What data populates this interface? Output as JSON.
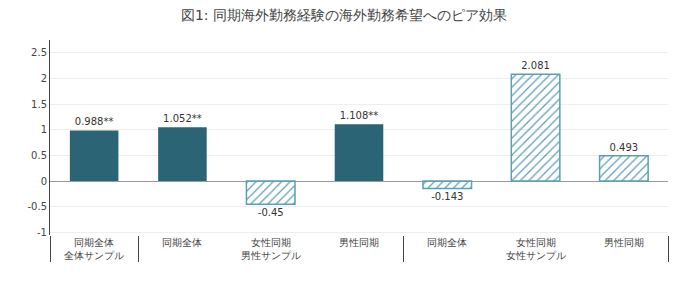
{
  "chart_data": {
    "type": "bar",
    "title": "図1: 同期海外勤務経験の海外勤務希望へのピア効果",
    "groups": [
      {
        "name": "全体サンプル",
        "categories": [
          "同期全体"
        ]
      },
      {
        "name": "男性サンプル",
        "categories": [
          "同期全体",
          "女性同期",
          "男性同期"
        ]
      },
      {
        "name": "女性サンプル",
        "categories": [
          "同期全体",
          "女性同期",
          "男性同期"
        ]
      }
    ],
    "series": [
      {
        "line_style": "solid",
        "color": "#2a6475",
        "values": [
          0.988,
          1.052,
          null,
          1.108,
          null,
          null,
          null
        ],
        "value_labels": [
          "0.988**",
          "1.052**",
          null,
          "1.108**",
          null,
          null,
          null
        ]
      },
      {
        "line_style": "dashed",
        "color": "#5b9eb5",
        "values": [
          null,
          null,
          -0.45,
          null,
          -0.143,
          2.081,
          0.493
        ],
        "value_labels": [
          null,
          null,
          "-0.45",
          null,
          "-0.143",
          "2.081",
          "0.493"
        ]
      }
    ],
    "ylim": [
      -1.05,
      2.75
    ],
    "yticks": [
      -1,
      -0.5,
      0,
      0.5,
      1,
      1.5,
      2,
      2.5
    ],
    "grid": true,
    "data_labels": true
  }
}
